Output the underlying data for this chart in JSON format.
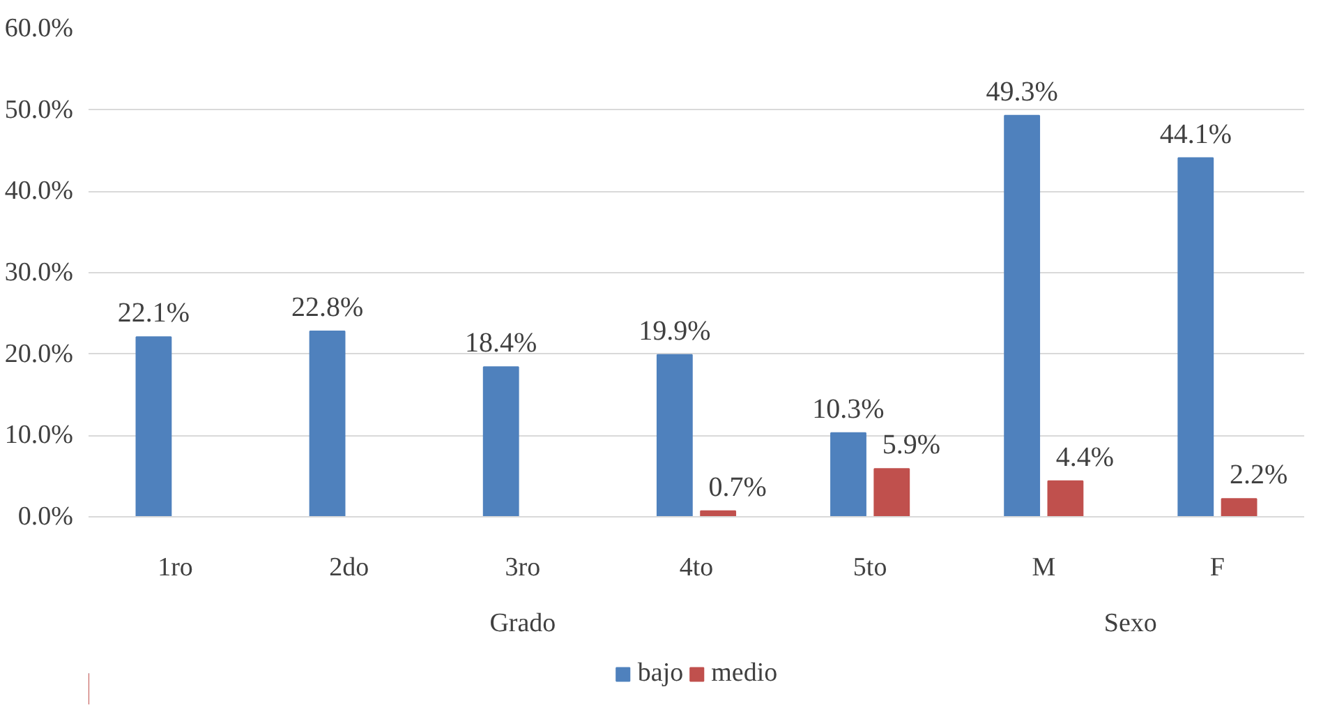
{
  "chart_data": {
    "type": "bar",
    "categories": [
      "1ro",
      "2do",
      "3ro",
      "4to",
      "5to",
      "M",
      "F"
    ],
    "series": [
      {
        "name": "bajo",
        "color": "#4f81bd",
        "values": [
          22.1,
          22.8,
          18.4,
          19.9,
          10.3,
          49.3,
          44.1
        ],
        "value_labels": [
          "22.1%",
          "22.8%",
          "18.4%",
          "19.9%",
          "10.3%",
          "49.3%",
          "44.1%"
        ]
      },
      {
        "name": "medio",
        "color": "#c0504d",
        "values": [
          null,
          null,
          null,
          0.7,
          5.9,
          4.4,
          2.2
        ],
        "value_labels": [
          null,
          null,
          null,
          "0.7%",
          "5.9%",
          "4.4%",
          "2.2%"
        ]
      }
    ],
    "annotations": [
      "Grado",
      "Sexo"
    ],
    "ylim": [
      0,
      60
    ],
    "yticks": [
      {
        "value": 0,
        "label": "0.0%"
      },
      {
        "value": 10,
        "label": "10.0%"
      },
      {
        "value": 20,
        "label": "20.0%"
      },
      {
        "value": 30,
        "label": "30.0%"
      },
      {
        "value": 40,
        "label": "40.0%"
      },
      {
        "value": 50,
        "label": "50.0%"
      },
      {
        "value": 60,
        "label": "60.0%"
      }
    ],
    "grid": "y",
    "legend": "bottom"
  }
}
